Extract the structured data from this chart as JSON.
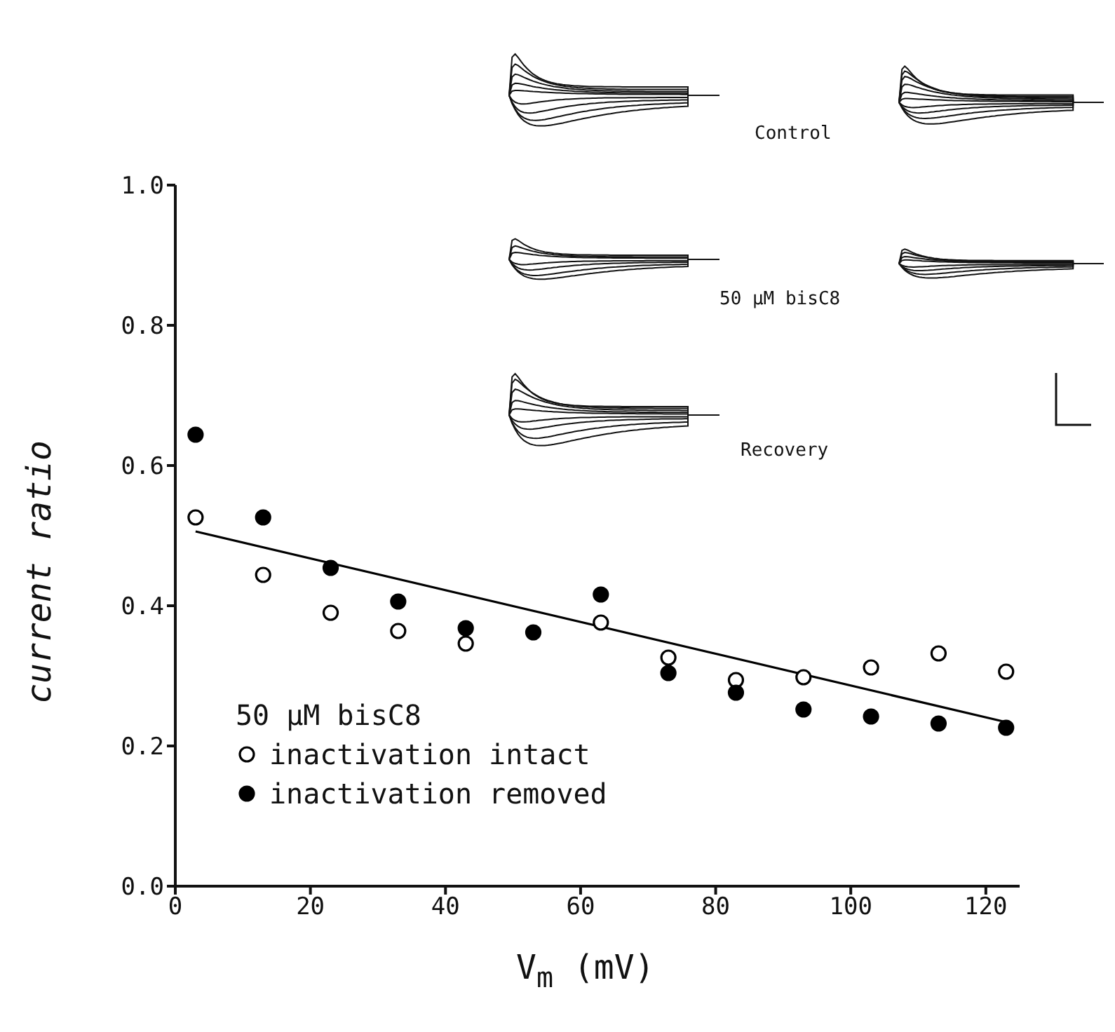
{
  "chart_data": {
    "type": "scatter",
    "xlabel": "V$_{m}$ (mV)",
    "ylabel": "current ratio",
    "legend_title": "50 μM bisC8",
    "x": [
      3,
      13,
      23,
      33,
      43,
      53,
      63,
      73,
      83,
      93,
      103,
      113,
      123
    ],
    "xlim": [
      0,
      125
    ],
    "xticks": [
      0,
      20,
      40,
      60,
      80,
      100,
      120
    ],
    "ylim": [
      0,
      1
    ],
    "yticks": [
      {
        "value": 0,
        "label": "0.0"
      },
      {
        "value": 0.2,
        "label": "0.2"
      },
      {
        "value": 0.4,
        "label": "0.4"
      },
      {
        "value": 0.6,
        "label": "0.6"
      },
      {
        "value": 0.8,
        "label": "0.8"
      },
      {
        "value": 1,
        "label": "1.0"
      }
    ],
    "series": [
      {
        "name": "inactivation intact",
        "color": "#ffffff",
        "values": [
          0.526,
          0.444,
          0.39,
          0.364,
          0.346,
          null,
          0.376,
          0.326,
          0.294,
          0.298,
          0.312,
          0.332,
          0.306
        ]
      },
      {
        "name": "inactivation removed",
        "color": "#000000",
        "values": [
          0.644,
          0.526,
          0.454,
          0.406,
          0.368,
          0.362,
          0.416,
          0.304,
          0.276,
          0.252,
          0.242,
          0.232,
          0.226
        ]
      },
      {
        "type": "line",
        "color": "#000000",
        "x": [
          3,
          123
        ],
        "values": [
          0.506,
          0.234
        ],
        "marker": "none"
      }
    ],
    "marker": "circle",
    "grid": false,
    "legend": "bottom left",
    "annotations": [
      "Control",
      "50 μM bisC8",
      "Recovery"
    ]
  }
}
